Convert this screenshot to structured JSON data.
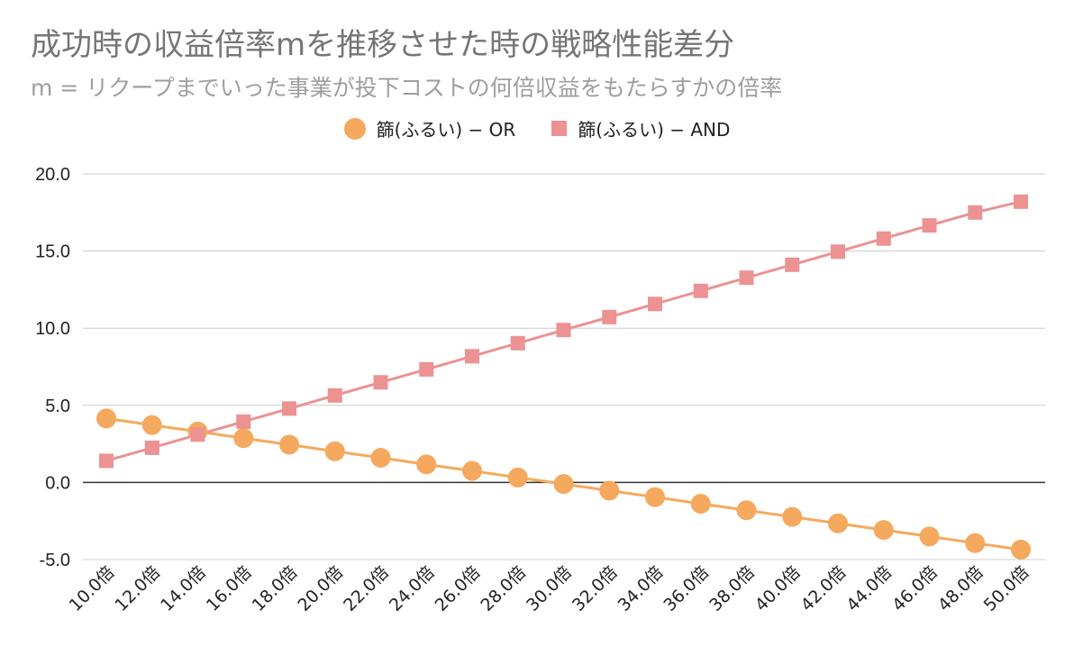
{
  "chart_data": {
    "type": "line",
    "title": "成功時の収益倍率mを推移させた時の戦略性能差分",
    "subtitle": "m = リクープまでいった事業が投下コストの何倍収益をもたらすかの倍率",
    "xlabel": "",
    "ylabel": "",
    "ylim": [
      -5.0,
      20.0
    ],
    "yticks": [
      "-5.0",
      "0.0",
      "5.0",
      "10.0",
      "15.0",
      "20.0"
    ],
    "ytick_values": [
      -5,
      0,
      5,
      10,
      15,
      20
    ],
    "grid": true,
    "legend_position": "top-center",
    "categories": [
      "10.0倍",
      "12.0倍",
      "14.0倍",
      "16.0倍",
      "18.0倍",
      "20.0倍",
      "22.0倍",
      "24.0倍",
      "26.0倍",
      "28.0倍",
      "30.0倍",
      "32.0倍",
      "34.0倍",
      "36.0倍",
      "38.0倍",
      "40.0倍",
      "42.0倍",
      "44.0倍",
      "46.0倍",
      "48.0倍",
      "50.0倍"
    ],
    "series": [
      {
        "name": "篩(ふるい) − OR",
        "marker": "circle",
        "color": "#f5a95e",
        "values": [
          4.15,
          3.72,
          3.3,
          2.87,
          2.45,
          2.02,
          1.6,
          1.17,
          0.75,
          0.32,
          -0.1,
          -0.53,
          -0.95,
          -1.38,
          -1.8,
          -2.23,
          -2.65,
          -3.08,
          -3.5,
          -3.93,
          -4.35
        ]
      },
      {
        "name": "篩(ふるい) − AND",
        "marker": "square",
        "color": "#ec9292",
        "values": [
          1.4,
          2.25,
          3.1,
          3.94,
          4.79,
          5.64,
          6.49,
          7.33,
          8.18,
          9.03,
          9.88,
          10.72,
          11.57,
          12.42,
          13.27,
          14.11,
          14.96,
          15.81,
          16.66,
          17.5,
          18.2
        ]
      }
    ]
  }
}
